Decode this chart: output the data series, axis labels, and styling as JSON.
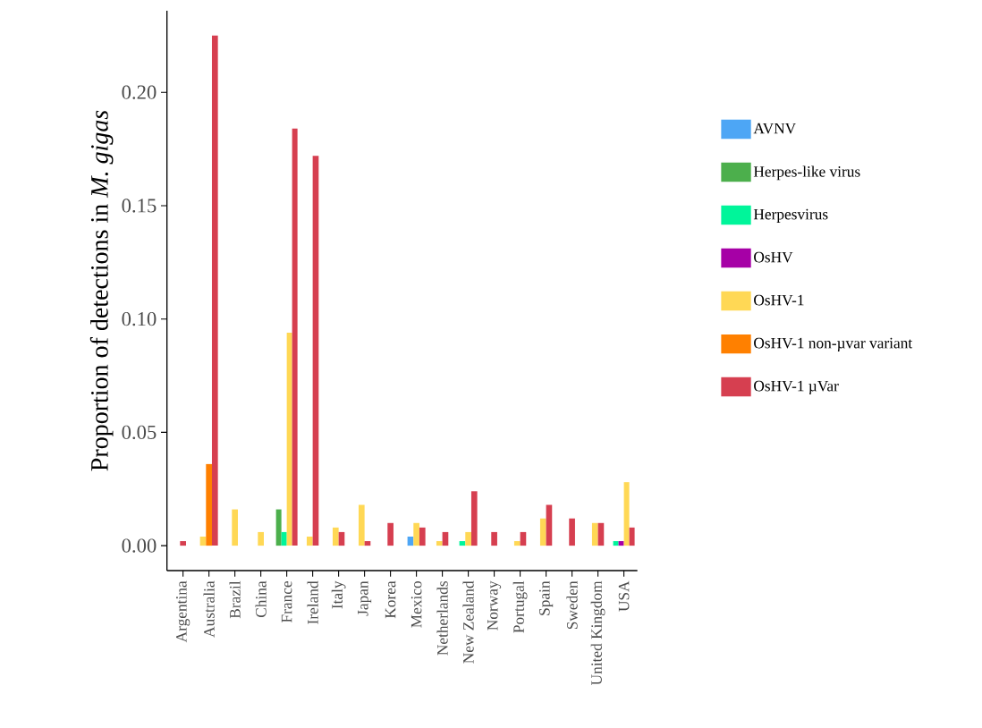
{
  "chart_data": {
    "type": "bar",
    "ylabel": "Proportion of detections in *M. gigas*",
    "categories": [
      "Argentina",
      "Australia",
      "Brazil",
      "China",
      "France",
      "Ireland",
      "Italy",
      "Japan",
      "Korea",
      "Mexico",
      "Netherlands",
      "New Zealand",
      "Norway",
      "Portugal",
      "Spain",
      "Sweden",
      "United Kingdom",
      "USA"
    ],
    "series": [
      {
        "name": "AVNV",
        "color": "#4da6f5",
        "values": [
          null,
          null,
          null,
          null,
          null,
          null,
          null,
          null,
          null,
          0.004,
          null,
          null,
          null,
          null,
          null,
          null,
          null,
          null
        ]
      },
      {
        "name": "Herpes-like virus",
        "color": "#4caf4c",
        "values": [
          null,
          null,
          null,
          null,
          0.016,
          null,
          null,
          null,
          null,
          null,
          null,
          null,
          null,
          null,
          null,
          null,
          null,
          null
        ]
      },
      {
        "name": "Herpesvirus",
        "color": "#00f59a",
        "values": [
          null,
          null,
          null,
          null,
          0.006,
          null,
          null,
          null,
          null,
          null,
          null,
          0.002,
          null,
          null,
          null,
          null,
          null,
          0.002
        ]
      },
      {
        "name": "OsHV",
        "color": "#a600a6",
        "values": [
          null,
          null,
          null,
          null,
          null,
          null,
          null,
          null,
          null,
          null,
          null,
          null,
          null,
          null,
          null,
          null,
          null,
          0.002
        ]
      },
      {
        "name": "OsHV-1",
        "color": "#ffd855",
        "values": [
          null,
          0.004,
          0.016,
          0.006,
          0.094,
          0.004,
          0.008,
          0.018,
          null,
          0.01,
          0.002,
          0.006,
          null,
          0.002,
          0.012,
          null,
          0.01,
          0.028
        ]
      },
      {
        "name": "OsHV-1 non-µvar variant",
        "color": "#ff8000",
        "values": [
          null,
          0.036,
          null,
          null,
          null,
          null,
          null,
          null,
          null,
          null,
          null,
          null,
          null,
          null,
          null,
          null,
          null,
          null
        ]
      },
      {
        "name": "OsHV-1 µVar",
        "color": "#d63f50",
        "values": [
          0.002,
          0.225,
          null,
          null,
          0.184,
          0.172,
          0.006,
          0.002,
          0.01,
          0.008,
          0.006,
          0.024,
          0.006,
          0.006,
          0.018,
          0.012,
          0.01,
          0.008
        ]
      }
    ],
    "ylim": [
      -0.011,
      0.236
    ],
    "yticks": [
      {
        "value": 0,
        "label": "0.00"
      },
      {
        "value": 0.05,
        "label": "0.05"
      },
      {
        "value": 0.1,
        "label": "0.10"
      },
      {
        "value": 0.15,
        "label": "0.15"
      },
      {
        "value": 0.2,
        "label": "0.20"
      }
    ],
    "grid": false,
    "legend": "right"
  }
}
